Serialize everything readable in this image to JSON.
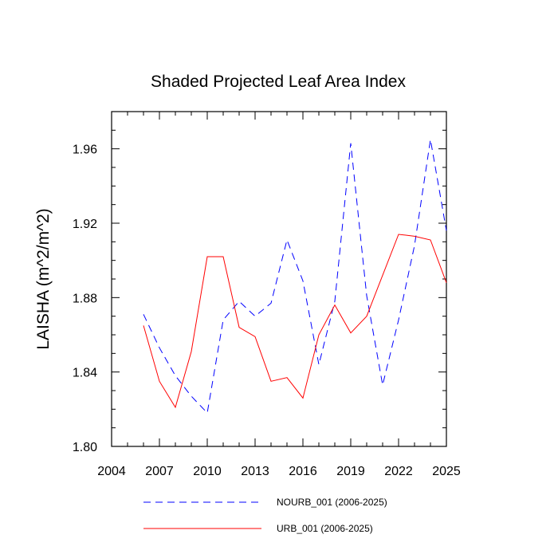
{
  "chart_data": {
    "type": "line",
    "title": "Shaded Projected Leaf Area Index",
    "xlabel": "",
    "ylabel": "LAISHA  (m^2/m^2)",
    "xlim": [
      2004,
      2025
    ],
    "ylim": [
      1.8,
      1.98
    ],
    "xticks": [
      2004,
      2007,
      2010,
      2013,
      2016,
      2019,
      2022,
      2025
    ],
    "xtick_labels": [
      "2004",
      "2007",
      "2010",
      "2013",
      "2016",
      "2019",
      "2022",
      "2025"
    ],
    "yticks": [
      1.8,
      1.84,
      1.88,
      1.92,
      1.96
    ],
    "ytick_labels": [
      "1.80",
      "1.84",
      "1.88",
      "1.92",
      "1.96"
    ],
    "x": [
      2006,
      2007,
      2008,
      2009,
      2010,
      2011,
      2012,
      2013,
      2014,
      2015,
      2016,
      2017,
      2018,
      2019,
      2020,
      2021,
      2022,
      2023,
      2024,
      2025
    ],
    "series": [
      {
        "name": "NOURB_001 (2006-2025)",
        "color": "#0000ff",
        "dash": "dashed",
        "values": [
          1.871,
          1.853,
          1.838,
          1.827,
          1.818,
          1.868,
          1.878,
          1.87,
          1.877,
          1.911,
          1.889,
          1.844,
          1.878,
          1.963,
          1.881,
          1.833,
          1.868,
          1.908,
          1.965,
          1.916
        ]
      },
      {
        "name": "URB_001 (2006-2025)",
        "color": "#ff0000",
        "dash": "solid",
        "values": [
          1.865,
          1.835,
          1.821,
          1.851,
          1.902,
          1.902,
          1.864,
          1.859,
          1.835,
          1.837,
          1.826,
          1.86,
          1.876,
          1.861,
          1.87,
          1.892,
          1.914,
          1.913,
          1.911,
          1.888
        ]
      }
    ],
    "legend_position": "bottom"
  }
}
